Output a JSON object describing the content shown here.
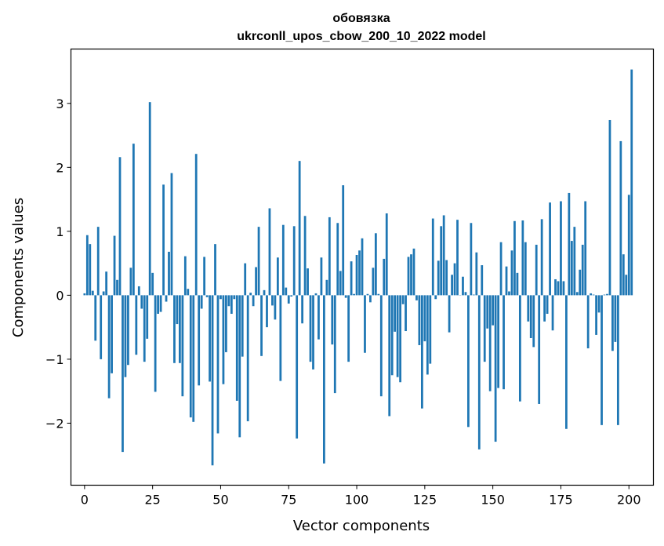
{
  "chart_data": {
    "type": "bar",
    "title": "обовязка",
    "subtitle": "ukrconll_upos_cbow_200_10_2022 model",
    "xlabel": "Vector components",
    "ylabel": "Components values",
    "xlim": [
      -5,
      209
    ],
    "ylim": [
      -2.97,
      3.85
    ],
    "xticks": [
      0,
      25,
      50,
      75,
      100,
      125,
      150,
      175,
      200
    ],
    "yticks": [
      -2,
      -1,
      0,
      1,
      2,
      3
    ],
    "ytick_labels": [
      "−2",
      "−1",
      "0",
      "1",
      "2",
      "3"
    ],
    "grid": false,
    "bar_color": "#1f77b4",
    "values": [
      0.03,
      0.94,
      0.8,
      0.07,
      -0.71,
      1.07,
      -1.0,
      0.06,
      0.37,
      -1.61,
      -1.22,
      0.93,
      0.24,
      2.16,
      -2.45,
      -1.28,
      -1.09,
      0.43,
      2.37,
      -0.93,
      0.14,
      -0.21,
      -1.04,
      -0.68,
      3.02,
      0.35,
      -1.51,
      -0.29,
      -0.26,
      1.73,
      -0.1,
      0.68,
      1.91,
      -1.06,
      -0.45,
      -1.06,
      -1.58,
      0.61,
      0.1,
      -1.91,
      -1.98,
      2.21,
      -1.41,
      -0.21,
      0.6,
      -0.03,
      -1.35,
      -2.66,
      0.8,
      -2.16,
      -0.06,
      -1.39,
      -0.89,
      -0.17,
      -0.29,
      -0.06,
      -1.65,
      -2.22,
      -0.96,
      0.5,
      -1.97,
      0.04,
      -0.17,
      0.44,
      1.07,
      -0.95,
      0.08,
      -0.5,
      1.36,
      -0.16,
      -0.38,
      0.59,
      -1.34,
      1.1,
      0.12,
      -0.13,
      -0.02,
      1.08,
      -2.24,
      2.1,
      -0.44,
      1.24,
      0.42,
      -1.04,
      -1.16,
      0.03,
      -0.69,
      0.59,
      -2.63,
      0.24,
      1.22,
      -0.77,
      -1.53,
      1.13,
      0.38,
      1.72,
      -0.04,
      -1.04,
      0.53,
      0.02,
      0.63,
      0.7,
      0.89,
      -0.9,
      0.02,
      -0.11,
      0.43,
      0.97,
      0.02,
      -1.58,
      0.57,
      1.28,
      -1.89,
      -1.25,
      -0.57,
      -1.28,
      -1.36,
      -0.14,
      -0.56,
      0.6,
      0.64,
      0.73,
      -0.08,
      -0.78,
      -1.77,
      -0.72,
      -1.24,
      -1.07,
      1.2,
      -0.06,
      0.54,
      1.08,
      1.25,
      0.55,
      -0.58,
      0.32,
      0.5,
      1.18,
      0.0,
      0.29,
      0.05,
      -2.06,
      1.13,
      0.01,
      0.67,
      -2.41,
      0.47,
      -1.04,
      -0.52,
      -1.5,
      -0.47,
      -2.29,
      -1.45,
      0.83,
      -1.47,
      0.45,
      0.06,
      0.7,
      1.16,
      0.35,
      -1.66,
      1.17,
      0.83,
      -0.41,
      -0.67,
      -0.81,
      0.79,
      -1.7,
      1.19,
      -0.41,
      -0.29,
      1.45,
      -0.55,
      0.25,
      0.22,
      1.47,
      0.22,
      -2.09,
      1.6,
      0.85,
      1.07,
      0.05,
      0.4,
      0.79,
      1.47,
      -0.83,
      0.03,
      0.01,
      -0.62,
      -0.27,
      -2.03,
      0.01,
      0.02,
      2.74,
      -0.87,
      -0.73,
      -2.03,
      2.41,
      0.64,
      0.32,
      1.57,
      3.53
    ]
  }
}
